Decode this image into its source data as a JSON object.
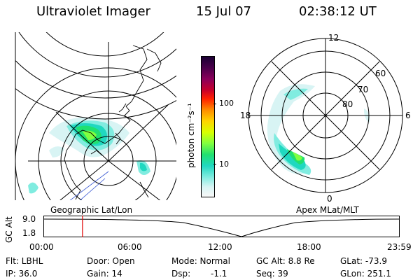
{
  "header": {
    "title": "Ultraviolet Imager",
    "date": "15 Jul 07",
    "time": "02:38:12 UT"
  },
  "colorbar": {
    "label": "photon cm⁻²s⁻¹",
    "ticks": [
      "100",
      "10"
    ],
    "colors": [
      "#1a0033",
      "#4b004b",
      "#8b005a",
      "#c8002a",
      "#ff2000",
      "#ff8c00",
      "#ffd400",
      "#d8ff00",
      "#80ff40",
      "#20e070",
      "#20d8c0",
      "#80ece0",
      "#d8f4f4",
      "#f8f8f8"
    ]
  },
  "geo_map": {
    "label": "Geographic Lat/Lon"
  },
  "polar_map": {
    "label": "Apex MLat/MLT",
    "mlt_labels": [
      "12",
      "18",
      "6",
      "0"
    ],
    "lat_labels": [
      "60",
      "70",
      "80"
    ]
  },
  "altitude_plot": {
    "ylabel": "GC Alt",
    "yticks": [
      "9.0",
      "1.8"
    ],
    "xticks": [
      "00:00",
      "06:00",
      "12:00",
      "18:00",
      "23:59"
    ],
    "marker_color": "#e00000",
    "marker_time_hours": 2.637
  },
  "info": {
    "flt": "Flt: LBHL",
    "ip": "IP: 36.0",
    "door": "Door: Open",
    "gain": "Gain: 14",
    "mode": "Mode: Normal",
    "dsp_label": "Dsp:",
    "dsp_value": "-1.1",
    "gcalt": "GC Alt: 8.8 Re",
    "seq": "Seq: 39",
    "glat": "GLat: -73.9",
    "glon": "GLon: 251.1"
  }
}
